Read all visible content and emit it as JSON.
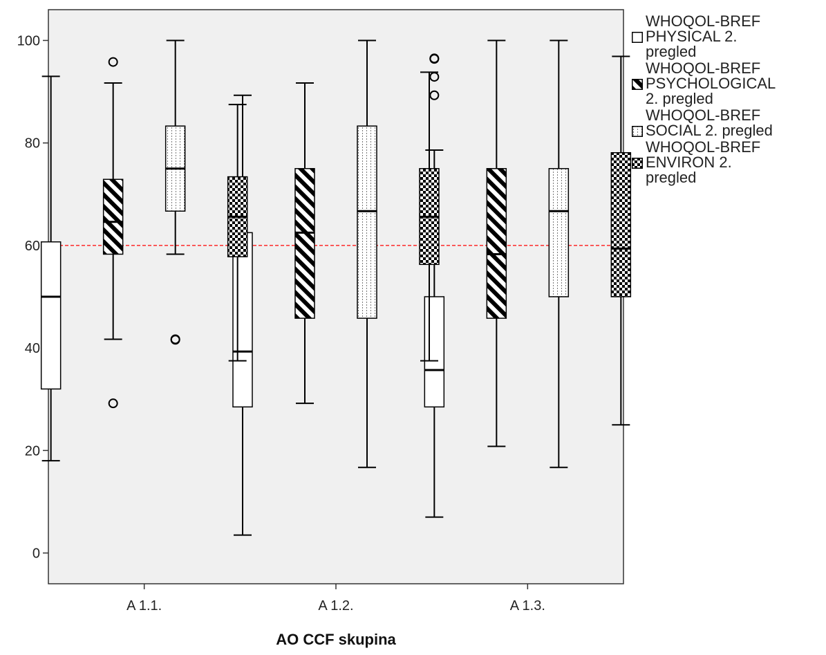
{
  "chart_data": {
    "type": "boxplot",
    "xlabel": "AO CCF skupina",
    "ylabel": "",
    "ylim": [
      -6,
      106
    ],
    "yticks": [
      0,
      20,
      40,
      60,
      80,
      100
    ],
    "reference_line": {
      "y": 60,
      "color": "#ff0000"
    },
    "grid": false,
    "legend_position": "right",
    "categories": [
      "A 1.1.",
      "A 1.2.",
      "A 1.3."
    ],
    "series": [
      {
        "name": "WHOQOL-BREF PHYSICAL 2. pregled",
        "pattern": "plain",
        "boxes": [
          {
            "whisker_low": 18,
            "q1": 32,
            "median": 50,
            "q3": 60.7,
            "whisker_high": 93,
            "outliers": []
          },
          {
            "whisker_low": 3.5,
            "q1": 28.5,
            "median": 39.3,
            "q3": 62.5,
            "whisker_high": 89.3,
            "outliers": []
          },
          {
            "whisker_low": 7,
            "q1": 28.5,
            "median": 35.7,
            "q3": 50,
            "whisker_high": 78.6,
            "outliers": [
              89.3,
              92.9,
              96.4,
              96.5
            ]
          }
        ]
      },
      {
        "name": "WHOQOL-BREF PSYCHOLOGICAL 2. pregled",
        "pattern": "diagonal",
        "boxes": [
          {
            "whisker_low": 41.7,
            "q1": 58.3,
            "median": 64.6,
            "q3": 72.9,
            "whisker_high": 91.7,
            "outliers": [
              29.2,
              95.8
            ]
          },
          {
            "whisker_low": 29.2,
            "q1": 45.8,
            "median": 62.5,
            "q3": 75,
            "whisker_high": 91.7,
            "outliers": []
          },
          {
            "whisker_low": 20.8,
            "q1": 45.8,
            "median": 58.3,
            "q3": 75,
            "whisker_high": 100,
            "outliers": []
          }
        ]
      },
      {
        "name": "WHOQOL-BREF SOCIAL 2. pregled",
        "pattern": "dots",
        "boxes": [
          {
            "whisker_low": 58.3,
            "q1": 66.7,
            "median": 75,
            "q3": 83.3,
            "whisker_high": 100,
            "outliers": [
              41.6,
              41.7
            ]
          },
          {
            "whisker_low": 16.7,
            "q1": 45.8,
            "median": 66.7,
            "q3": 83.3,
            "whisker_high": 100,
            "outliers": []
          },
          {
            "whisker_low": 16.7,
            "q1": 50,
            "median": 66.7,
            "q3": 75,
            "whisker_high": 100,
            "outliers": []
          }
        ]
      },
      {
        "name": "WHOQOL-BREF ENVIRON 2. pregled",
        "pattern": "checker",
        "boxes": [
          {
            "whisker_low": 37.5,
            "q1": 57.8,
            "median": 65.6,
            "q3": 73.4,
            "whisker_high": 87.5,
            "outliers": []
          },
          {
            "whisker_low": 37.5,
            "q1": 56.3,
            "median": 65.6,
            "q3": 75,
            "whisker_high": 93.8,
            "outliers": []
          },
          {
            "whisker_low": 25,
            "q1": 50,
            "median": 59.4,
            "q3": 78.1,
            "whisker_high": 96.9,
            "outliers": []
          }
        ]
      }
    ]
  },
  "legend": {
    "items": [
      {
        "lines": [
          "WHOQOL-BREF",
          "PHYSICAL 2.",
          "pregled"
        ]
      },
      {
        "lines": [
          "WHOQOL-BREF",
          "PSYCHOLOGICAL",
          "2. pregled"
        ]
      },
      {
        "lines": [
          "WHOQOL-BREF",
          "SOCIAL 2. pregled"
        ]
      },
      {
        "lines": [
          "WHOQOL-BREF",
          "ENVIRON 2.",
          "pregled"
        ]
      }
    ]
  },
  "colors": {
    "plot_background": "#f0f0f0",
    "box_stroke": "#000000",
    "reference_line": "#ff0000"
  }
}
